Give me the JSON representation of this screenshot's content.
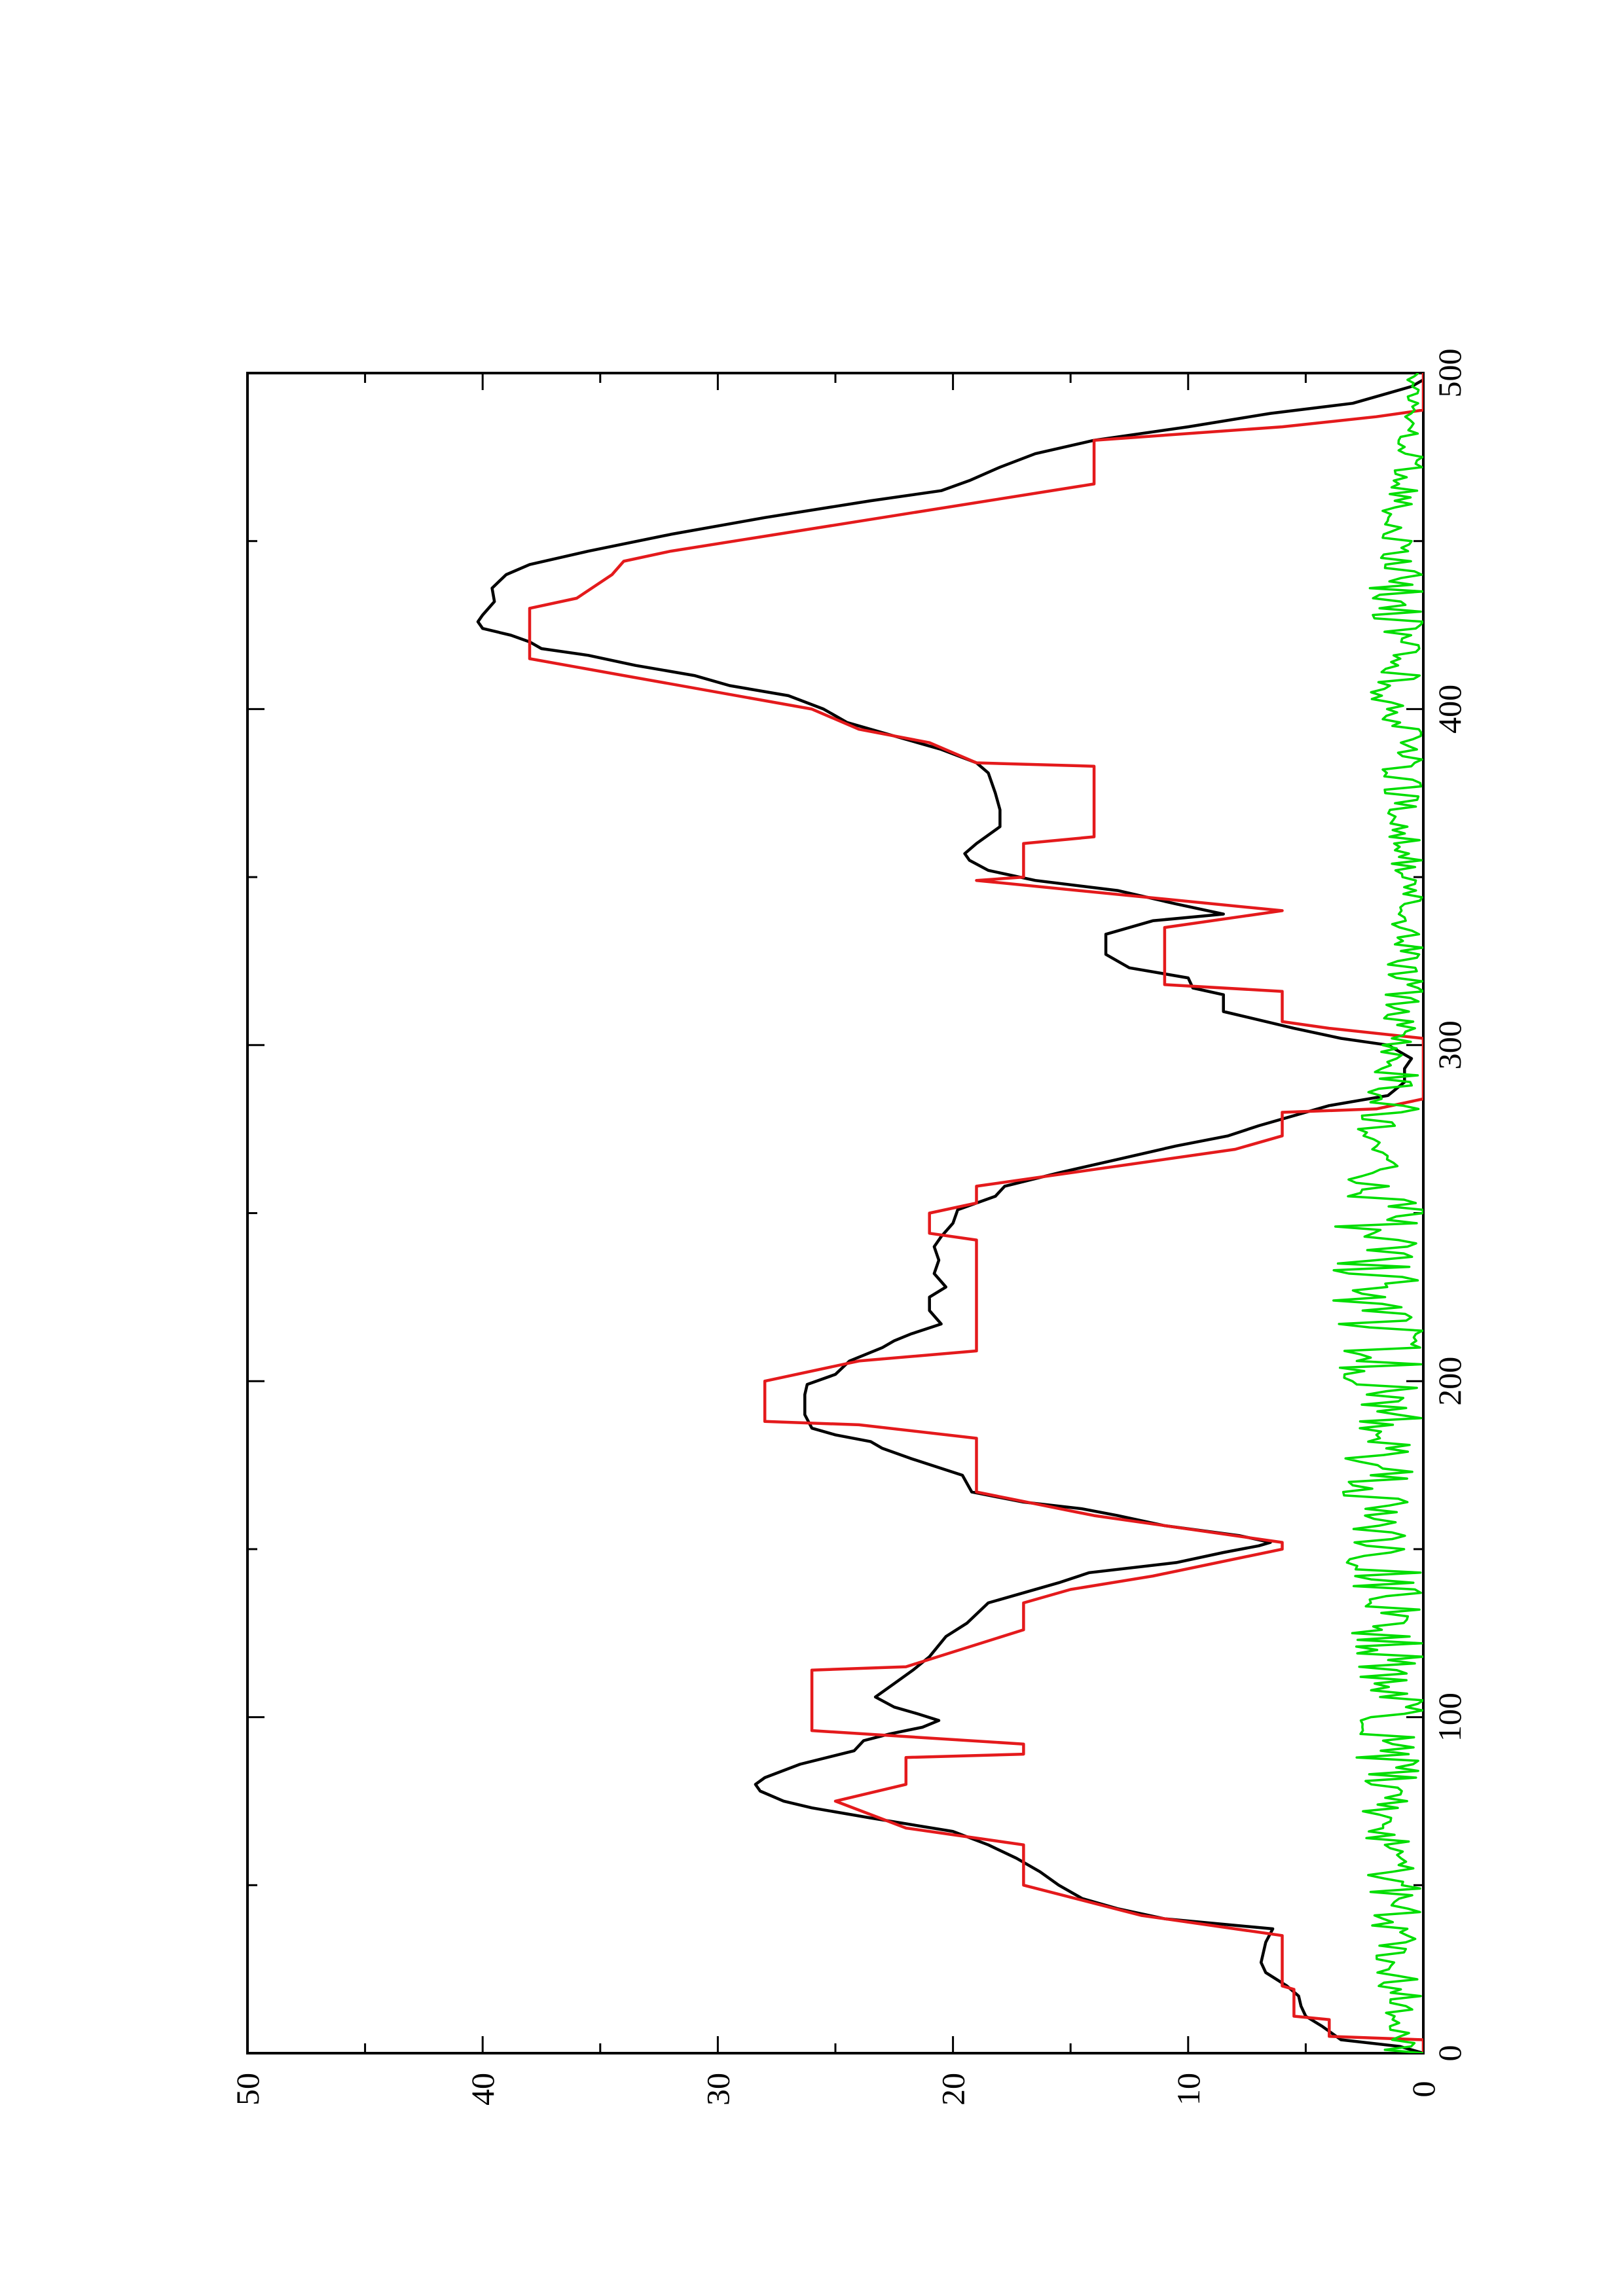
{
  "chart_data": {
    "type": "line",
    "orientation": "rotated-90-ccw",
    "xlim": [
      0,
      500
    ],
    "ylim": [
      0,
      50
    ],
    "x_ticks": [
      0,
      100,
      200,
      300,
      400,
      500
    ],
    "x_minor_ticks": [
      50,
      150,
      250,
      350,
      450
    ],
    "y_ticks": [
      0,
      10,
      20,
      30,
      40,
      50
    ],
    "y_minor_ticks": [
      5,
      15,
      25,
      35,
      45
    ],
    "grid": false,
    "legend": false,
    "title": "",
    "xlabel": "",
    "ylabel": "",
    "series": [
      {
        "color": "#000000",
        "style": "smooth",
        "points": [
          [
            0,
            0
          ],
          [
            2,
            1
          ],
          [
            4,
            3.5
          ],
          [
            8,
            4.3
          ],
          [
            11,
            5
          ],
          [
            14,
            5.2
          ],
          [
            17,
            5.3
          ],
          [
            20,
            5.8
          ],
          [
            24,
            6.7
          ],
          [
            27,
            6.9
          ],
          [
            33,
            6.7
          ],
          [
            37,
            6.4
          ],
          [
            40,
            11
          ],
          [
            43,
            13
          ],
          [
            46,
            14.5
          ],
          [
            50,
            15.5
          ],
          [
            54,
            16.3
          ],
          [
            58,
            17.3
          ],
          [
            62,
            18.5
          ],
          [
            66,
            20
          ],
          [
            70,
            23.5
          ],
          [
            73,
            26
          ],
          [
            75,
            27.2
          ],
          [
            78,
            28.2
          ],
          [
            80,
            28.4
          ],
          [
            82,
            28.0
          ],
          [
            86,
            26.5
          ],
          [
            90,
            24.2
          ],
          [
            93,
            23.8
          ],
          [
            95,
            22.7
          ],
          [
            97,
            21.3
          ],
          [
            99,
            20.6
          ],
          [
            101,
            21.5
          ],
          [
            103,
            22.5
          ],
          [
            106,
            23.3
          ],
          [
            110,
            22.5
          ],
          [
            114,
            21.7
          ],
          [
            118,
            21.0
          ],
          [
            124,
            20.3
          ],
          [
            128,
            19.4
          ],
          [
            134,
            18.5
          ],
          [
            140,
            15.5
          ],
          [
            143,
            14.2
          ],
          [
            146,
            10.5
          ],
          [
            149,
            8.5
          ],
          [
            151,
            7.0
          ],
          [
            152,
            6.5
          ],
          [
            154,
            7.8
          ],
          [
            157,
            11
          ],
          [
            160,
            13
          ],
          [
            162,
            14.5
          ],
          [
            164,
            17.0
          ],
          [
            167,
            19.2
          ],
          [
            172,
            19.6
          ],
          [
            177,
            21.8
          ],
          [
            180,
            23.0
          ],
          [
            182,
            23.5
          ],
          [
            184,
            25.0
          ],
          [
            186,
            26.0
          ],
          [
            190,
            26.3
          ],
          [
            196,
            26.3
          ],
          [
            199,
            26.2
          ],
          [
            202,
            25.0
          ],
          [
            206,
            24.4
          ],
          [
            210,
            23.0
          ],
          [
            212,
            22.5
          ],
          [
            214,
            21.8
          ],
          [
            217,
            20.5
          ],
          [
            221,
            21.0
          ],
          [
            225,
            21.0
          ],
          [
            228,
            20.3
          ],
          [
            232,
            20.8
          ],
          [
            236,
            20.6
          ],
          [
            240,
            20.8
          ],
          [
            243,
            20.5
          ],
          [
            247,
            20.0
          ],
          [
            251,
            19.8
          ],
          [
            255,
            18.2
          ],
          [
            258,
            17.8
          ],
          [
            262,
            15.5
          ],
          [
            266,
            13
          ],
          [
            270,
            10.5
          ],
          [
            273,
            8.3
          ],
          [
            276,
            7.0
          ],
          [
            279,
            5.5
          ],
          [
            282,
            4.0
          ],
          [
            285,
            1.5
          ],
          [
            289,
            0.8
          ],
          [
            293,
            0.8
          ],
          [
            296,
            0.5
          ],
          [
            300,
            1.5
          ],
          [
            302,
            3.5
          ],
          [
            305,
            5.5
          ],
          [
            308,
            7.3
          ],
          [
            310,
            8.5
          ],
          [
            315,
            8.5
          ],
          [
            317,
            9.8
          ],
          [
            320,
            10.0
          ],
          [
            323,
            12.5
          ],
          [
            327,
            13.5
          ],
          [
            333,
            13.5
          ],
          [
            337,
            11.5
          ],
          [
            339,
            8.5
          ],
          [
            342,
            10.5
          ],
          [
            346,
            13.0
          ],
          [
            349,
            16.5
          ],
          [
            352,
            18.5
          ],
          [
            355,
            19.3
          ],
          [
            357,
            19.5
          ],
          [
            360,
            19.0
          ],
          [
            365,
            18.0
          ],
          [
            370,
            18.0
          ],
          [
            375,
            18.2
          ],
          [
            381,
            18.5
          ],
          [
            384,
            19.0
          ],
          [
            388,
            20.5
          ],
          [
            392,
            22.5
          ],
          [
            396,
            24.5
          ],
          [
            400,
            25.5
          ],
          [
            404,
            27.0
          ],
          [
            407,
            29.5
          ],
          [
            410,
            31.0
          ],
          [
            413,
            33.5
          ],
          [
            416,
            35.5
          ],
          [
            418,
            37.5
          ],
          [
            420,
            38.0
          ],
          [
            422,
            38.8
          ],
          [
            424,
            40.0
          ],
          [
            426,
            40.2
          ],
          [
            428,
            40.0
          ],
          [
            432,
            39.5
          ],
          [
            436,
            39.6
          ],
          [
            440,
            39.0
          ],
          [
            443,
            38.0
          ],
          [
            447,
            35.5
          ],
          [
            452,
            32.0
          ],
          [
            457,
            28.0
          ],
          [
            462,
            23.5
          ],
          [
            465,
            20.5
          ],
          [
            468,
            19.3
          ],
          [
            472,
            18.0
          ],
          [
            476,
            16.5
          ],
          [
            480,
            14.0
          ],
          [
            484,
            10.0
          ],
          [
            488,
            6.5
          ],
          [
            491,
            3.0
          ],
          [
            494,
            1.5
          ],
          [
            496,
            0.5
          ],
          [
            498,
            0
          ]
        ]
      },
      {
        "color": "#e41a1c",
        "style": "linear",
        "points": [
          [
            0,
            0
          ],
          [
            4,
            0
          ],
          [
            5,
            4.0
          ],
          [
            10,
            4.0
          ],
          [
            11,
            5.5
          ],
          [
            19,
            5.5
          ],
          [
            20,
            6.0
          ],
          [
            35,
            6.0
          ],
          [
            41,
            12.0
          ],
          [
            50,
            17.0
          ],
          [
            62,
            17.0
          ],
          [
            67,
            22.0
          ],
          [
            75,
            25.0
          ],
          [
            80,
            22.0
          ],
          [
            88,
            22.0
          ],
          [
            89,
            17.0
          ],
          [
            92,
            17.0
          ],
          [
            96,
            26.0
          ],
          [
            114,
            26.0
          ],
          [
            115,
            22.0
          ],
          [
            126,
            17.0
          ],
          [
            134,
            17.0
          ],
          [
            138,
            15.0
          ],
          [
            142,
            11.5
          ],
          [
            150,
            6.0
          ],
          [
            152,
            6.0
          ],
          [
            160,
            14.0
          ],
          [
            167,
            19.0
          ],
          [
            183,
            19.0
          ],
          [
            187,
            24.0
          ],
          [
            188,
            28.0
          ],
          [
            200,
            28.0
          ],
          [
            206,
            24.0
          ],
          [
            209,
            19.0
          ],
          [
            242,
            19.0
          ],
          [
            244,
            21.0
          ],
          [
            250,
            21.0
          ],
          [
            253,
            19.0
          ],
          [
            258,
            19.0
          ],
          [
            269,
            8.0
          ],
          [
            273,
            6.0
          ],
          [
            280,
            6.0
          ],
          [
            281,
            2.0
          ],
          [
            284,
            0
          ],
          [
            302,
            0
          ],
          [
            305,
            4.0
          ],
          [
            307,
            6.0
          ],
          [
            316,
            6.0
          ],
          [
            318,
            11.0
          ],
          [
            335,
            11.0
          ],
          [
            340,
            6.0
          ],
          [
            349,
            19.0
          ],
          [
            350,
            17.0
          ],
          [
            360,
            17.0
          ],
          [
            362,
            14.0
          ],
          [
            383,
            14.0
          ],
          [
            384,
            19.0
          ],
          [
            390,
            21.0
          ],
          [
            394,
            24.0
          ],
          [
            400,
            26.0
          ],
          [
            410,
            34.0
          ],
          [
            415,
            38.0
          ],
          [
            430,
            38.0
          ],
          [
            433,
            36.0
          ],
          [
            440,
            34.5
          ],
          [
            444,
            34.0
          ],
          [
            447,
            32.0
          ],
          [
            467,
            14.0
          ],
          [
            480,
            14.0
          ],
          [
            484,
            6.0
          ],
          [
            487,
            2.0
          ],
          [
            489,
            0
          ],
          [
            500,
            0
          ]
        ]
      },
      {
        "color": "#00dd00",
        "style": "noise",
        "seed": 7,
        "points": [
          [
            0,
            0.8
          ],
          [
            60,
            1.2
          ],
          [
            120,
            1.4
          ],
          [
            180,
            1.6
          ],
          [
            240,
            1.8
          ],
          [
            300,
            0.9
          ],
          [
            340,
            0.6
          ],
          [
            380,
            0.8
          ],
          [
            420,
            1.2
          ],
          [
            460,
            0.8
          ],
          [
            500,
            0.3
          ]
        ]
      }
    ]
  }
}
